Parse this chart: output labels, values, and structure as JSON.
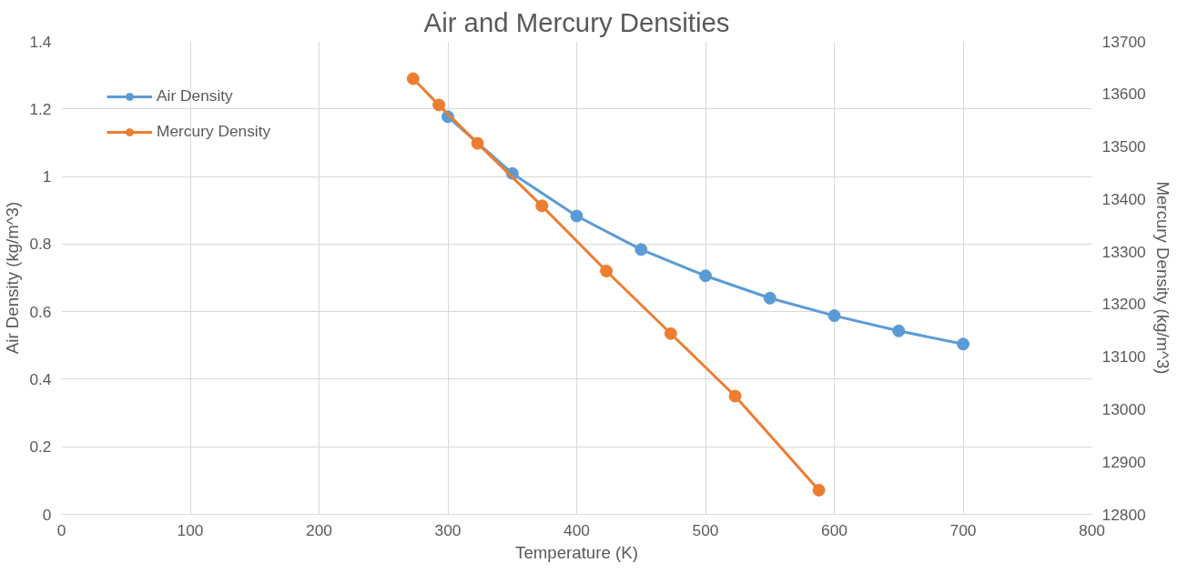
{
  "chart_data": {
    "type": "line",
    "title": "Air and Mercury Densities",
    "xlabel": "Temperature (K)",
    "ylabel": "Air Density (kg/m^3)",
    "y2label": "Mercury Density (kg/m^3)",
    "xlim": [
      0,
      800
    ],
    "xticks": [
      0,
      100,
      200,
      300,
      400,
      500,
      600,
      700,
      800
    ],
    "ylim": [
      0,
      1.4
    ],
    "yticks": [
      0,
      0.2,
      0.4,
      0.6,
      0.8,
      1,
      1.2,
      1.4
    ],
    "y2lim": [
      12800,
      13700
    ],
    "y2ticks": [
      12800,
      12900,
      13000,
      13100,
      13200,
      13300,
      13400,
      13500,
      13600,
      13700
    ],
    "grid": true,
    "legend": "top left",
    "marker": "circle",
    "line_style": "solid",
    "series": [
      {
        "name": "Air Density",
        "color": "#5b9bd5",
        "x": [
          300,
          350,
          400,
          450,
          500,
          550,
          600,
          650,
          700
        ],
        "values": [
          1.177,
          1.009,
          0.883,
          0.784,
          0.706,
          0.64,
          0.588,
          0.543,
          0.504
        ]
      },
      {
        "name": "Mercury Density",
        "color": "#ed7d31",
        "axis": "y2",
        "x": [
          273,
          293,
          323,
          373,
          423,
          473,
          523,
          588
        ],
        "values": [
          13629,
          13579,
          13506,
          13387,
          13263,
          13144,
          13025,
          12846
        ]
      }
    ]
  }
}
